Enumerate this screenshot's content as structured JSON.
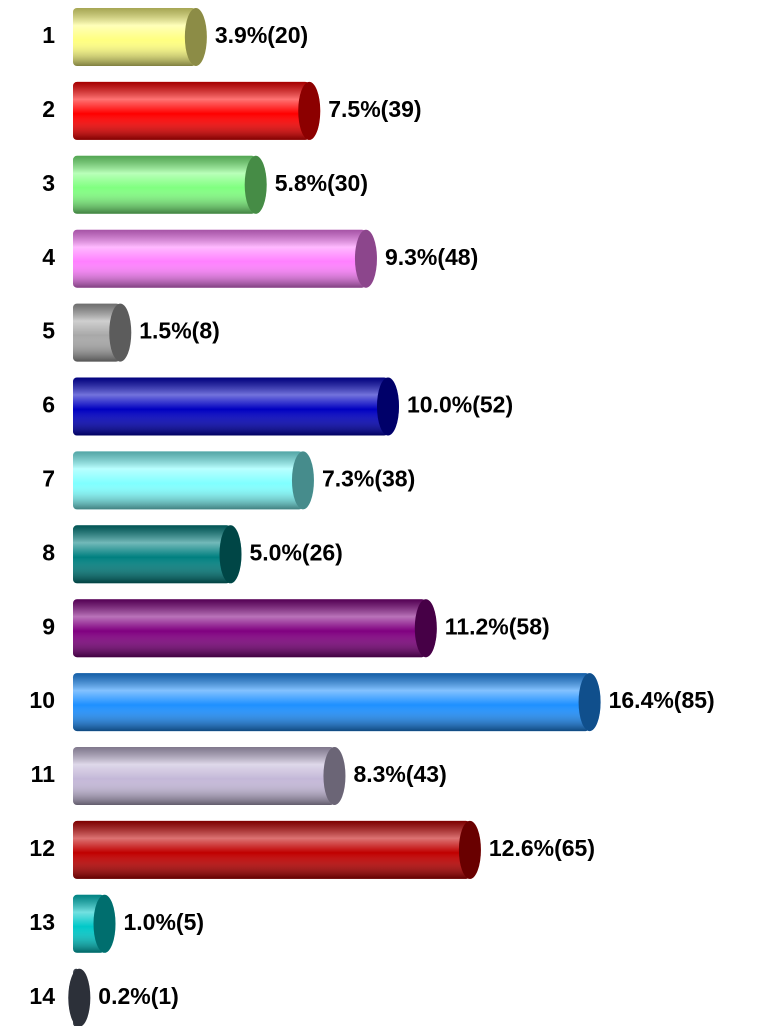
{
  "chart_data": {
    "type": "bar",
    "orientation": "horizontal",
    "categories": [
      "1",
      "2",
      "3",
      "4",
      "5",
      "6",
      "7",
      "8",
      "9",
      "10",
      "11",
      "12",
      "13",
      "14"
    ],
    "values": [
      3.9,
      7.5,
      5.8,
      9.3,
      1.5,
      10.0,
      7.3,
      5.0,
      11.2,
      16.4,
      8.3,
      12.6,
      1.0,
      0.2
    ],
    "value_labels": [
      "3.9%(20)",
      "7.5%(39)",
      "5.8%(30)",
      "9.3%(48)",
      "1.5%(8)",
      "10.0%(52)",
      "7.3%(38)",
      "5.0%(26)",
      "11.2%(58)",
      "16.4%(85)",
      "8.3%(43)",
      "12.6%(65)",
      "1.0%(5)",
      "0.2%(1)"
    ],
    "colors": [
      "#ffff80",
      "#ff0000",
      "#80ff80",
      "#ff80ff",
      "#a8a8a8",
      "#0000c0",
      "#80ffff",
      "#008080",
      "#800080",
      "#1e90ff",
      "#c4b8d8",
      "#c00000",
      "#00c8c8",
      "#505868"
    ]
  }
}
